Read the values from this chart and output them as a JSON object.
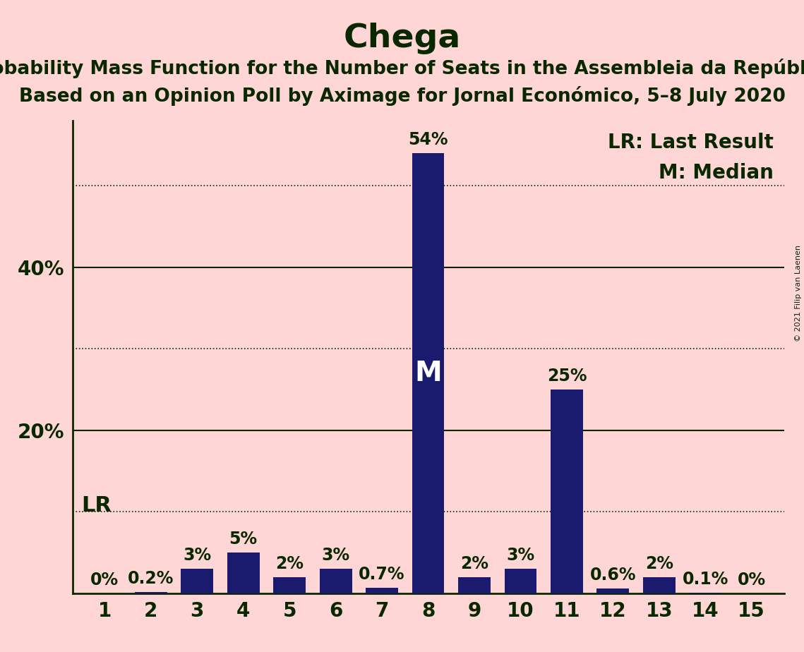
{
  "title": "Chega",
  "subtitle1": "Probability Mass Function for the Number of Seats in the Assembleia da República",
  "subtitle2": "Based on an Opinion Poll by Aximage for Jornal Económico, 5–8 July 2020",
  "copyright": "© 2021 Filip van Laenen",
  "seats": [
    1,
    2,
    3,
    4,
    5,
    6,
    7,
    8,
    9,
    10,
    11,
    12,
    13,
    14,
    15
  ],
  "probabilities": [
    0.0,
    0.2,
    3.0,
    5.0,
    2.0,
    3.0,
    0.7,
    54.0,
    2.0,
    3.0,
    25.0,
    0.6,
    2.0,
    0.1,
    0.0
  ],
  "bar_color": "#1a1a6e",
  "background_color": "#ffd6d6",
  "text_color": "#0a2800",
  "median_seat": 8,
  "lr_seat": 1,
  "yticks_labeled": [
    20,
    40
  ],
  "dotted_yticks": [
    10,
    30,
    50
  ],
  "solid_yticks": [
    20,
    40
  ],
  "ylim": [
    0,
    58
  ],
  "legend_lr": "LR: Last Result",
  "legend_m": "M: Median",
  "title_fontsize": 34,
  "subtitle_fontsize": 19,
  "label_fontsize": 20,
  "tick_fontsize": 20,
  "bar_label_fontsize": 17,
  "median_label_fontsize": 28,
  "lr_label_fontsize": 22
}
